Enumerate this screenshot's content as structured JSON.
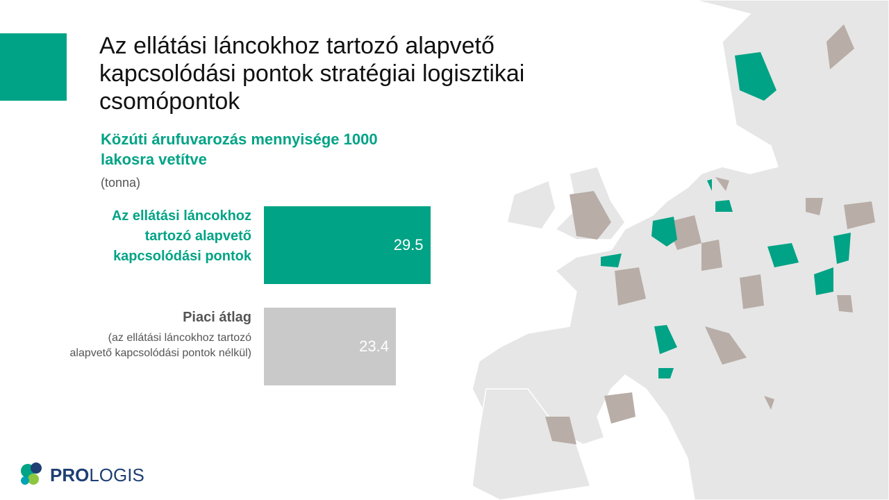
{
  "title": "Az ellátási láncokhoz tartozó alapvető kapcsolódási pontok stratégiai logisztikai csomópontok",
  "chart_data": {
    "type": "hbar",
    "title": "Közúti árufuvarozás mennyisége 1000 lakosra vetítve",
    "unit": "(tonna)",
    "categories": [
      "Az ellátási láncokhoz tartozó alapvető kapcsolódási pontok",
      "Piaci átlag"
    ],
    "category_notes": [
      null,
      "(az ellátási láncokhoz tartozó alapvető kapcsolódási pontok nélkül)"
    ],
    "values": [
      29.5,
      23.4
    ],
    "colors": [
      "#00a385",
      "#c9c9c9"
    ],
    "label_colors": [
      "#00a385",
      "#555555"
    ]
  },
  "logo": {
    "bold": "PRO",
    "rest": "LOGIS"
  }
}
